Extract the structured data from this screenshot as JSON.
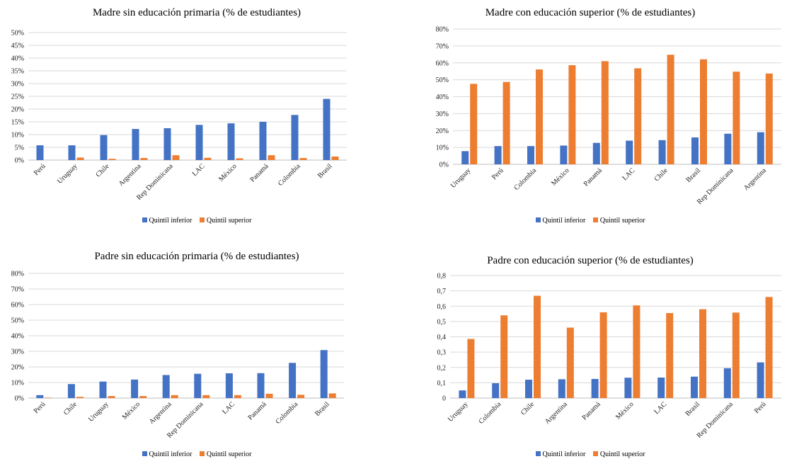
{
  "colors": {
    "series1": "#4472C4",
    "series2": "#ED7D31",
    "grid": "#D9D9D9"
  },
  "legend": [
    "Quintil inferior",
    "Quintil superior"
  ],
  "chart_data": [
    {
      "type": "bar",
      "title": "Madre sin educación primaria (% de estudiantes)",
      "categories": [
        "Perú",
        "Uruguay",
        "Chile",
        "Argentina",
        "Rep Dominicana",
        "LAC",
        "México",
        "Panamá",
        "Colombia",
        "Brasil"
      ],
      "series": [
        {
          "name": "Quintil inferior",
          "values": [
            5.8,
            5.8,
            9.8,
            12.2,
            12.5,
            13.8,
            14.4,
            15.0,
            17.7,
            24.0
          ]
        },
        {
          "name": "Quintil superior",
          "values": [
            0,
            1.0,
            0.5,
            0.8,
            1.9,
            0.9,
            0.7,
            1.9,
            0.8,
            1.4
          ]
        }
      ],
      "yticks": [
        "0%",
        "5%",
        "10%",
        "15%",
        "20%",
        "25%",
        "30%",
        "35%",
        "40%",
        "45%",
        "50%"
      ],
      "ylim": [
        0,
        50
      ],
      "grid": true,
      "legend_position": "bottom"
    },
    {
      "type": "bar",
      "title": "Madre con educación superior (% de estudiantes)",
      "categories": [
        "Uruguay",
        "Perú",
        "Colombia",
        "México",
        "Panamá",
        "LAC",
        "Chile",
        "Brasil",
        "Rep Dominicana",
        "Argentina"
      ],
      "series": [
        {
          "name": "Quintil inferior",
          "values": [
            7.8,
            10.8,
            10.8,
            11.1,
            12.7,
            14.0,
            14.3,
            15.9,
            18.1,
            19.0
          ]
        },
        {
          "name": "Quintil superior",
          "values": [
            47.6,
            48.7,
            56.1,
            58.6,
            61.0,
            56.8,
            64.8,
            62.1,
            54.8,
            53.7
          ]
        }
      ],
      "yticks": [
        "0%",
        "10%",
        "20%",
        "30%",
        "40%",
        "50%",
        "60%",
        "70%",
        "80%"
      ],
      "ylim": [
        0,
        80
      ],
      "grid": true,
      "legend_position": "bottom"
    },
    {
      "type": "bar",
      "title": "Padre sin educación primaria (% de estudiantes)",
      "categories": [
        "Perú",
        "Chile",
        "Uruguay",
        "México",
        "Argentina",
        "Rep Dominicana",
        "LAC",
        "Panamá",
        "Colombia",
        "Brasil"
      ],
      "series": [
        {
          "name": "Quintil inferior",
          "values": [
            1.9,
            9.0,
            10.6,
            11.9,
            14.8,
            15.6,
            15.9,
            16.0,
            22.6,
            30.8
          ]
        },
        {
          "name": "Quintil superior",
          "values": [
            0.3,
            0.8,
            1.3,
            1.3,
            1.9,
            1.9,
            1.9,
            2.8,
            2.1,
            3.0
          ]
        }
      ],
      "yticks": [
        "0%",
        "10%",
        "20%",
        "30%",
        "40%",
        "50%",
        "60%",
        "70%",
        "80%"
      ],
      "ylim": [
        0,
        80
      ],
      "grid": true,
      "legend_position": "bottom"
    },
    {
      "type": "bar",
      "title": "Padre con educación superior (% de estudiantes)",
      "categories": [
        "Uruguay",
        "Colombia",
        "Chile",
        "Argentina",
        "Panamá",
        "México",
        "LAC",
        "Brasil",
        "Rep Dominicana",
        "Perú"
      ],
      "series": [
        {
          "name": "Quintil inferior",
          "values": [
            0.05,
            0.097,
            0.12,
            0.123,
            0.125,
            0.133,
            0.134,
            0.14,
            0.195,
            0.233
          ]
        },
        {
          "name": "Quintil superior",
          "values": [
            0.386,
            0.54,
            0.668,
            0.46,
            0.56,
            0.605,
            0.555,
            0.58,
            0.558,
            0.66
          ]
        }
      ],
      "yticks": [
        "0",
        "0,1",
        "0,2",
        "0,3",
        "0,4",
        "0,5",
        "0,6",
        "0,7",
        "0,8"
      ],
      "ylim": [
        0,
        0.8
      ],
      "grid": true,
      "legend_position": "bottom"
    }
  ]
}
